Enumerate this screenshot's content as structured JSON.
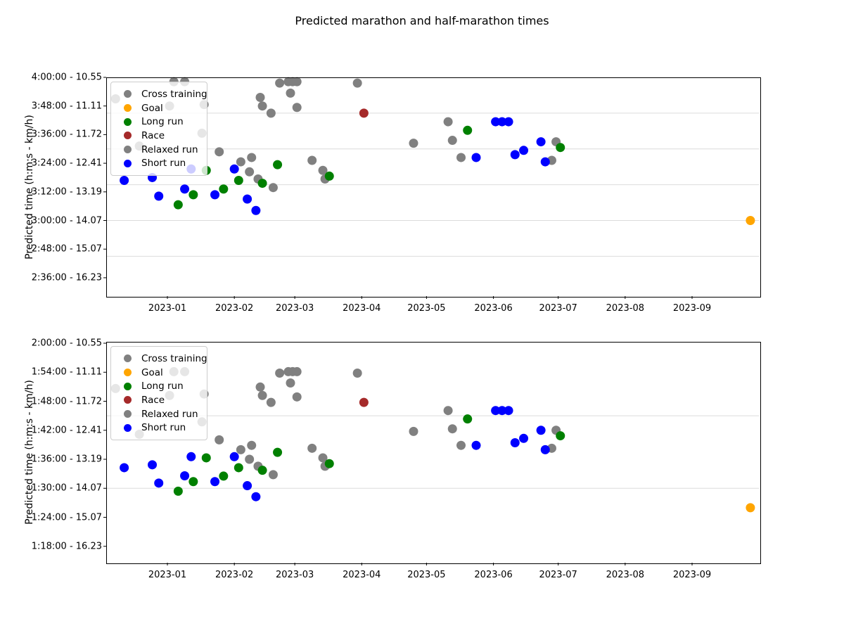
{
  "title": "Predicted marathon and half-marathon times",
  "legend": [
    {
      "label": "Cross training",
      "color": "#808080"
    },
    {
      "label": "Goal",
      "color": "#FFA500"
    },
    {
      "label": "Long run",
      "color": "#008000"
    },
    {
      "label": "Race",
      "color": "#A52A2A"
    },
    {
      "label": "Relaxed run",
      "color": "#808080"
    },
    {
      "label": "Short run",
      "color": "#0000FF"
    }
  ],
  "chart_data": [
    {
      "type": "scatter",
      "name": "marathon",
      "ylabel": "Predicted time (h:m:s - km/h)",
      "yticks": [
        {
          "label": "4:00:00 - 10.55",
          "value": 4.0
        },
        {
          "label": "3:48:00 - 11.11",
          "value": 3.8
        },
        {
          "label": "3:36:00 - 11.72",
          "value": 3.6
        },
        {
          "label": "3:24:00 - 12.41",
          "value": 3.4
        },
        {
          "label": "3:12:00 - 13.19",
          "value": 3.2
        },
        {
          "label": "3:00:00 - 14.07",
          "value": 3.0
        },
        {
          "label": "2:48:00 - 15.07",
          "value": 2.8
        },
        {
          "label": "2:36:00 - 16.23",
          "value": 2.6
        }
      ],
      "gridlines": [
        3.75,
        3.5,
        3.25,
        3.0,
        2.75
      ],
      "xticks": [
        {
          "label": "2023-01",
          "date": "2023-01-01"
        },
        {
          "label": "2023-02",
          "date": "2023-02-01"
        },
        {
          "label": "2023-03",
          "date": "2023-03-01"
        },
        {
          "label": "2023-04",
          "date": "2023-04-01"
        },
        {
          "label": "2023-05",
          "date": "2023-05-01"
        },
        {
          "label": "2023-06",
          "date": "2023-06-01"
        },
        {
          "label": "2023-07",
          "date": "2023-07-01"
        },
        {
          "label": "2023-08",
          "date": "2023-08-01"
        },
        {
          "label": "2023-09",
          "date": "2023-09-01"
        }
      ],
      "series": [
        {
          "name": "Cross training",
          "color": "#808080",
          "points": [
            {
              "date": "2022-12-08",
              "hours": 3.85
            },
            {
              "date": "2023-01-02",
              "hours": 3.8
            },
            {
              "date": "2023-01-04",
              "hours": 3.97
            },
            {
              "date": "2023-01-09",
              "hours": 3.97
            },
            {
              "date": "2023-01-18",
              "hours": 3.81
            },
            {
              "date": "2023-02-13",
              "hours": 3.86
            },
            {
              "date": "2023-02-14",
              "hours": 3.8
            },
            {
              "date": "2023-02-18",
              "hours": 3.75
            },
            {
              "date": "2023-02-22",
              "hours": 3.96
            },
            {
              "date": "2023-02-26",
              "hours": 3.97
            },
            {
              "date": "2023-02-27",
              "hours": 3.89
            },
            {
              "date": "2023-02-28",
              "hours": 3.97
            },
            {
              "date": "2023-03-02",
              "hours": 3.97
            },
            {
              "date": "2023-03-02",
              "hours": 3.79
            },
            {
              "date": "2023-03-30",
              "hours": 3.96
            },
            {
              "date": "2023-05-11",
              "hours": 3.69
            }
          ]
        },
        {
          "name": "Relaxed run",
          "color": "#808080",
          "points": [
            {
              "date": "2022-12-19",
              "hours": 3.52
            },
            {
              "date": "2023-01-17",
              "hours": 3.61
            },
            {
              "date": "2023-01-25",
              "hours": 3.48
            },
            {
              "date": "2023-02-04",
              "hours": 3.41
            },
            {
              "date": "2023-02-08",
              "hours": 3.34
            },
            {
              "date": "2023-02-09",
              "hours": 3.44
            },
            {
              "date": "2023-02-12",
              "hours": 3.29
            },
            {
              "date": "2023-02-19",
              "hours": 3.23
            },
            {
              "date": "2023-03-09",
              "hours": 3.42
            },
            {
              "date": "2023-03-14",
              "hours": 3.35
            },
            {
              "date": "2023-03-15",
              "hours": 3.29
            },
            {
              "date": "2023-04-25",
              "hours": 3.54
            },
            {
              "date": "2023-05-13",
              "hours": 3.56
            },
            {
              "date": "2023-05-17",
              "hours": 3.44
            },
            {
              "date": "2023-06-28",
              "hours": 3.42
            },
            {
              "date": "2023-06-30",
              "hours": 3.55
            }
          ]
        },
        {
          "name": "Long run",
          "color": "#008000",
          "points": [
            {
              "date": "2023-01-06",
              "hours": 3.11
            },
            {
              "date": "2023-01-13",
              "hours": 3.18
            },
            {
              "date": "2023-01-19",
              "hours": 3.35
            },
            {
              "date": "2023-01-27",
              "hours": 3.22
            },
            {
              "date": "2023-02-03",
              "hours": 3.28
            },
            {
              "date": "2023-02-14",
              "hours": 3.26
            },
            {
              "date": "2023-02-21",
              "hours": 3.39
            },
            {
              "date": "2023-03-17",
              "hours": 3.31
            },
            {
              "date": "2023-05-20",
              "hours": 3.63
            },
            {
              "date": "2023-07-02",
              "hours": 3.51
            }
          ]
        },
        {
          "name": "Short run",
          "color": "#0000FF",
          "points": [
            {
              "date": "2022-12-12",
              "hours": 3.28
            },
            {
              "date": "2022-12-25",
              "hours": 3.3
            },
            {
              "date": "2022-12-28",
              "hours": 3.17
            },
            {
              "date": "2023-01-09",
              "hours": 3.22
            },
            {
              "date": "2023-01-12",
              "hours": 3.36
            },
            {
              "date": "2023-01-23",
              "hours": 3.18
            },
            {
              "date": "2023-02-01",
              "hours": 3.36
            },
            {
              "date": "2023-02-07",
              "hours": 3.15
            },
            {
              "date": "2023-02-11",
              "hours": 3.07
            },
            {
              "date": "2023-05-24",
              "hours": 3.44
            },
            {
              "date": "2023-06-02",
              "hours": 3.69
            },
            {
              "date": "2023-06-05",
              "hours": 3.69
            },
            {
              "date": "2023-06-08",
              "hours": 3.69
            },
            {
              "date": "2023-06-11",
              "hours": 3.46
            },
            {
              "date": "2023-06-15",
              "hours": 3.49
            },
            {
              "date": "2023-06-23",
              "hours": 3.55
            },
            {
              "date": "2023-06-25",
              "hours": 3.41
            }
          ]
        },
        {
          "name": "Race",
          "color": "#A52A2A",
          "points": [
            {
              "date": "2023-04-02",
              "hours": 3.75
            }
          ]
        },
        {
          "name": "Goal",
          "color": "#FFA500",
          "points": [
            {
              "date": "2023-09-28",
              "hours": 3.0
            }
          ]
        }
      ]
    },
    {
      "type": "scatter",
      "name": "half-marathon",
      "ylabel": "Predicted time (h:m:s - km/h)",
      "yticks": [
        {
          "label": "2:00:00 - 10.55",
          "value": 2.0
        },
        {
          "label": "1:54:00 - 11.11",
          "value": 1.9
        },
        {
          "label": "1:48:00 - 11.72",
          "value": 1.8
        },
        {
          "label": "1:42:00 - 12.41",
          "value": 1.7
        },
        {
          "label": "1:36:00 - 13.19",
          "value": 1.6
        },
        {
          "label": "1:30:00 - 14.07",
          "value": 1.5
        },
        {
          "label": "1:24:00 - 15.07",
          "value": 1.4
        },
        {
          "label": "1:18:00 - 16.23",
          "value": 1.3
        }
      ],
      "gridlines": [
        1.75,
        1.5
      ],
      "xticks": [
        {
          "label": "2023-01",
          "date": "2023-01-01"
        },
        {
          "label": "2023-02",
          "date": "2023-02-01"
        },
        {
          "label": "2023-03",
          "date": "2023-03-01"
        },
        {
          "label": "2023-04",
          "date": "2023-04-01"
        },
        {
          "label": "2023-05",
          "date": "2023-05-01"
        },
        {
          "label": "2023-06",
          "date": "2023-06-01"
        },
        {
          "label": "2023-07",
          "date": "2023-07-01"
        },
        {
          "label": "2023-08",
          "date": "2023-08-01"
        },
        {
          "label": "2023-09",
          "date": "2023-09-01"
        }
      ],
      "series": [
        {
          "name": "Cross training",
          "color": "#808080",
          "points": [
            {
              "date": "2022-12-08",
              "hours": 1.844
            },
            {
              "date": "2023-01-02",
              "hours": 1.82
            },
            {
              "date": "2023-01-04",
              "hours": 1.902
            },
            {
              "date": "2023-01-09",
              "hours": 1.902
            },
            {
              "date": "2023-01-18",
              "hours": 1.825
            },
            {
              "date": "2023-02-13",
              "hours": 1.849
            },
            {
              "date": "2023-02-14",
              "hours": 1.82
            },
            {
              "date": "2023-02-18",
              "hours": 1.796
            },
            {
              "date": "2023-02-22",
              "hours": 1.897
            },
            {
              "date": "2023-02-26",
              "hours": 1.902
            },
            {
              "date": "2023-02-27",
              "hours": 1.863
            },
            {
              "date": "2023-02-28",
              "hours": 1.902
            },
            {
              "date": "2023-03-02",
              "hours": 1.902
            },
            {
              "date": "2023-03-02",
              "hours": 1.815
            },
            {
              "date": "2023-03-30",
              "hours": 1.897
            },
            {
              "date": "2023-05-11",
              "hours": 1.768
            }
          ]
        },
        {
          "name": "Relaxed run",
          "color": "#808080",
          "points": [
            {
              "date": "2022-12-19",
              "hours": 1.686
            },
            {
              "date": "2023-01-17",
              "hours": 1.729
            },
            {
              "date": "2023-01-25",
              "hours": 1.667
            },
            {
              "date": "2023-02-04",
              "hours": 1.633
            },
            {
              "date": "2023-02-08",
              "hours": 1.6
            },
            {
              "date": "2023-02-09",
              "hours": 1.648
            },
            {
              "date": "2023-02-12",
              "hours": 1.576
            },
            {
              "date": "2023-02-19",
              "hours": 1.547
            },
            {
              "date": "2023-03-09",
              "hours": 1.638
            },
            {
              "date": "2023-03-14",
              "hours": 1.605
            },
            {
              "date": "2023-03-15",
              "hours": 1.576
            },
            {
              "date": "2023-04-25",
              "hours": 1.696
            },
            {
              "date": "2023-05-13",
              "hours": 1.705
            },
            {
              "date": "2023-05-17",
              "hours": 1.648
            },
            {
              "date": "2023-06-28",
              "hours": 1.638
            },
            {
              "date": "2023-06-30",
              "hours": 1.7
            }
          ]
        },
        {
          "name": "Long run",
          "color": "#008000",
          "points": [
            {
              "date": "2023-01-06",
              "hours": 1.49
            },
            {
              "date": "2023-01-13",
              "hours": 1.523
            },
            {
              "date": "2023-01-19",
              "hours": 1.605
            },
            {
              "date": "2023-01-27",
              "hours": 1.542
            },
            {
              "date": "2023-02-03",
              "hours": 1.571
            },
            {
              "date": "2023-02-14",
              "hours": 1.562
            },
            {
              "date": "2023-02-21",
              "hours": 1.624
            },
            {
              "date": "2023-03-17",
              "hours": 1.585
            },
            {
              "date": "2023-05-20",
              "hours": 1.739
            },
            {
              "date": "2023-07-02",
              "hours": 1.681
            }
          ]
        },
        {
          "name": "Short run",
          "color": "#0000FF",
          "points": [
            {
              "date": "2022-12-12",
              "hours": 1.571
            },
            {
              "date": "2022-12-25",
              "hours": 1.581
            },
            {
              "date": "2022-12-28",
              "hours": 1.518
            },
            {
              "date": "2023-01-09",
              "hours": 1.543
            },
            {
              "date": "2023-01-12",
              "hours": 1.609
            },
            {
              "date": "2023-01-23",
              "hours": 1.523
            },
            {
              "date": "2023-02-01",
              "hours": 1.609
            },
            {
              "date": "2023-02-07",
              "hours": 1.509
            },
            {
              "date": "2023-02-11",
              "hours": 1.471
            },
            {
              "date": "2023-05-24",
              "hours": 1.648
            },
            {
              "date": "2023-06-02",
              "hours": 1.768
            },
            {
              "date": "2023-06-05",
              "hours": 1.768
            },
            {
              "date": "2023-06-08",
              "hours": 1.768
            },
            {
              "date": "2023-06-11",
              "hours": 1.657
            },
            {
              "date": "2023-06-15",
              "hours": 1.672
            },
            {
              "date": "2023-06-23",
              "hours": 1.7
            },
            {
              "date": "2023-06-25",
              "hours": 1.633
            }
          ]
        },
        {
          "name": "Race",
          "color": "#A52A2A",
          "points": [
            {
              "date": "2023-04-02",
              "hours": 1.796
            }
          ]
        },
        {
          "name": "Goal",
          "color": "#FFA500",
          "points": [
            {
              "date": "2023-09-28",
              "hours": 1.433
            }
          ]
        }
      ]
    }
  ]
}
